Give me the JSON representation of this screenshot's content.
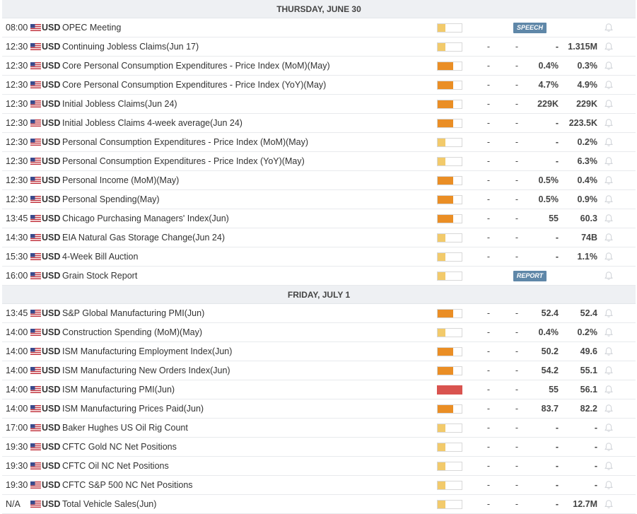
{
  "days": [
    {
      "title": "THURSDAY, JUNE 30",
      "events": [
        {
          "time": "08:00",
          "currency": "USD",
          "name": "OPEC Meeting",
          "impact": "low",
          "tag": "SPEECH"
        },
        {
          "time": "12:30",
          "currency": "USD",
          "name": "Continuing Jobless Claims(Jun 17)",
          "impact": "low",
          "actual": "-",
          "deviation": "-",
          "consensus": "-",
          "previous": "1.315M"
        },
        {
          "time": "12:30",
          "currency": "USD",
          "name": "Core Personal Consumption Expenditures - Price Index (MoM)(May)",
          "impact": "medium",
          "actual": "-",
          "deviation": "-",
          "consensus": "0.4%",
          "previous": "0.3%"
        },
        {
          "time": "12:30",
          "currency": "USD",
          "name": "Core Personal Consumption Expenditures - Price Index (YoY)(May)",
          "impact": "medium",
          "actual": "-",
          "deviation": "-",
          "consensus": "4.7%",
          "previous": "4.9%"
        },
        {
          "time": "12:30",
          "currency": "USD",
          "name": "Initial Jobless Claims(Jun 24)",
          "impact": "medium",
          "actual": "-",
          "deviation": "-",
          "consensus": "229K",
          "previous": "229K"
        },
        {
          "time": "12:30",
          "currency": "USD",
          "name": "Initial Jobless Claims 4-week average(Jun 24)",
          "impact": "medium",
          "actual": "-",
          "deviation": "-",
          "consensus": "-",
          "previous": "223.5K"
        },
        {
          "time": "12:30",
          "currency": "USD",
          "name": "Personal Consumption Expenditures - Price Index (MoM)(May)",
          "impact": "low",
          "actual": "-",
          "deviation": "-",
          "consensus": "-",
          "previous": "0.2%"
        },
        {
          "time": "12:30",
          "currency": "USD",
          "name": "Personal Consumption Expenditures - Price Index (YoY)(May)",
          "impact": "low",
          "actual": "-",
          "deviation": "-",
          "consensus": "-",
          "previous": "6.3%"
        },
        {
          "time": "12:30",
          "currency": "USD",
          "name": "Personal Income (MoM)(May)",
          "impact": "medium",
          "actual": "-",
          "deviation": "-",
          "consensus": "0.5%",
          "previous": "0.4%"
        },
        {
          "time": "12:30",
          "currency": "USD",
          "name": "Personal Spending(May)",
          "impact": "medium",
          "actual": "-",
          "deviation": "-",
          "consensus": "0.5%",
          "previous": "0.9%"
        },
        {
          "time": "13:45",
          "currency": "USD",
          "name": "Chicago Purchasing Managers' Index(Jun)",
          "impact": "medium",
          "actual": "-",
          "deviation": "-",
          "consensus": "55",
          "previous": "60.3"
        },
        {
          "time": "14:30",
          "currency": "USD",
          "name": "EIA Natural Gas Storage Change(Jun 24)",
          "impact": "low",
          "actual": "-",
          "deviation": "-",
          "consensus": "-",
          "previous": "74B"
        },
        {
          "time": "15:30",
          "currency": "USD",
          "name": "4-Week Bill Auction",
          "impact": "low",
          "actual": "-",
          "deviation": "-",
          "consensus": "-",
          "previous": "1.1%"
        },
        {
          "time": "16:00",
          "currency": "USD",
          "name": "Grain Stock Report",
          "impact": "low",
          "tag": "REPORT"
        }
      ]
    },
    {
      "title": "FRIDAY, JULY 1",
      "events": [
        {
          "time": "13:45",
          "currency": "USD",
          "name": "S&P Global Manufacturing PMI(Jun)",
          "impact": "medium",
          "actual": "-",
          "deviation": "-",
          "consensus": "52.4",
          "previous": "52.4"
        },
        {
          "time": "14:00",
          "currency": "USD",
          "name": "Construction Spending (MoM)(May)",
          "impact": "low",
          "actual": "-",
          "deviation": "-",
          "consensus": "0.4%",
          "previous": "0.2%"
        },
        {
          "time": "14:00",
          "currency": "USD",
          "name": "ISM Manufacturing Employment Index(Jun)",
          "impact": "medium",
          "actual": "-",
          "deviation": "-",
          "consensus": "50.2",
          "previous": "49.6"
        },
        {
          "time": "14:00",
          "currency": "USD",
          "name": "ISM Manufacturing New Orders Index(Jun)",
          "impact": "medium",
          "actual": "-",
          "deviation": "-",
          "consensus": "54.2",
          "previous": "55.1"
        },
        {
          "time": "14:00",
          "currency": "USD",
          "name": "ISM Manufacturing PMI(Jun)",
          "impact": "high",
          "actual": "-",
          "deviation": "-",
          "consensus": "55",
          "previous": "56.1"
        },
        {
          "time": "14:00",
          "currency": "USD",
          "name": "ISM Manufacturing Prices Paid(Jun)",
          "impact": "medium",
          "actual": "-",
          "deviation": "-",
          "consensus": "83.7",
          "previous": "82.2"
        },
        {
          "time": "17:00",
          "currency": "USD",
          "name": "Baker Hughes US Oil Rig Count",
          "impact": "low",
          "actual": "-",
          "deviation": "-",
          "consensus": "-",
          "previous": "-"
        },
        {
          "time": "19:30",
          "currency": "USD",
          "name": "CFTC Gold NC Net Positions",
          "impact": "low",
          "actual": "-",
          "deviation": "-",
          "consensus": "-",
          "previous": "-"
        },
        {
          "time": "19:30",
          "currency": "USD",
          "name": "CFTC Oil NC Net Positions",
          "impact": "low",
          "actual": "-",
          "deviation": "-",
          "consensus": "-",
          "previous": "-"
        },
        {
          "time": "19:30",
          "currency": "USD",
          "name": "CFTC S&P 500 NC Net Positions",
          "impact": "low",
          "actual": "-",
          "deviation": "-",
          "consensus": "-",
          "previous": "-"
        },
        {
          "time": "N/A",
          "currency": "USD",
          "name": "Total Vehicle Sales(Jun)",
          "impact": "low",
          "actual": "-",
          "deviation": "-",
          "consensus": "-",
          "previous": "12.7M"
        }
      ]
    }
  ],
  "icons": {
    "flag": "us-flag-icon",
    "alert": "bell-icon"
  },
  "colors": {
    "impact_low": "#f2ca6b",
    "impact_medium": "#ea8e25",
    "impact_high": "#d9534f",
    "tag": "#5f87a8"
  }
}
